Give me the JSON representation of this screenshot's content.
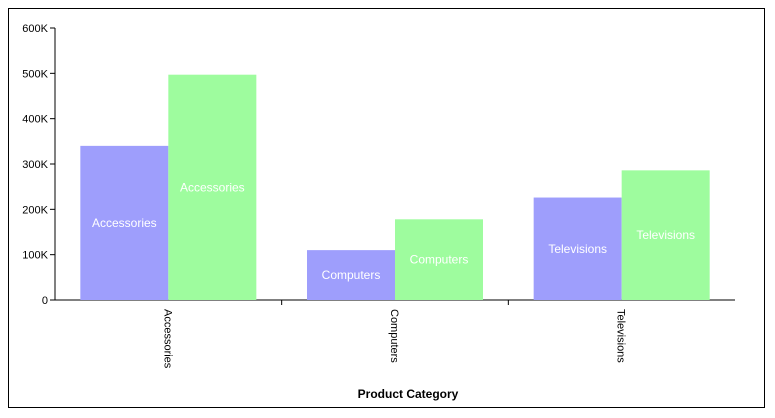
{
  "chart_data": {
    "type": "bar",
    "xlabel": "Product Category",
    "ylabel": "",
    "categories": [
      "Accessories",
      "Computers",
      "Televisions"
    ],
    "series": [
      {
        "values": [
          340000,
          110000,
          226000
        ],
        "color": "#9e9efc",
        "data_labels": [
          "Accessories",
          "Computers",
          "Televisions"
        ]
      },
      {
        "values": [
          497000,
          178000,
          286000
        ],
        "color": "#9efc9e",
        "data_labels": [
          "Accessories",
          "Computers",
          "Televisions"
        ]
      }
    ],
    "ylim": [
      0,
      600000
    ],
    "yticks": [
      {
        "value": 0,
        "label": "0"
      },
      {
        "value": 100000,
        "label": "100K"
      },
      {
        "value": 200000,
        "label": "200K"
      },
      {
        "value": 300000,
        "label": "300K"
      },
      {
        "value": 400000,
        "label": "400K"
      },
      {
        "value": 500000,
        "label": "500K"
      },
      {
        "value": 600000,
        "label": "600K"
      }
    ],
    "grid": false,
    "legend": "none",
    "bar_label_color": "#ffffff",
    "axis_color": "#000000"
  }
}
